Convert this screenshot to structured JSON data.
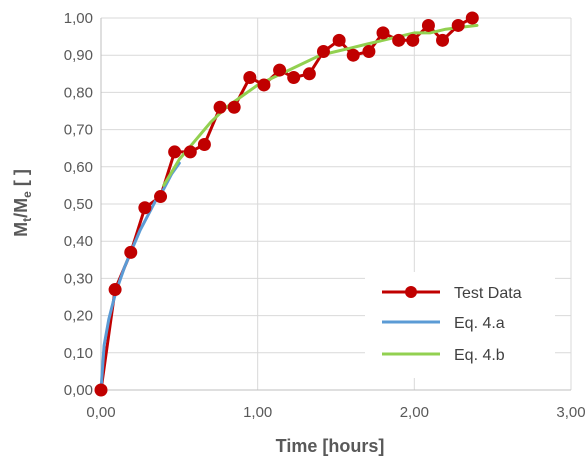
{
  "chart_data": {
    "type": "line",
    "xlabel": "Time [hours]",
    "ylabel_main": "M",
    "ylabel_sub1": "t",
    "ylabel_mid": "/M",
    "ylabel_sub2": "e",
    "ylabel_tail": " [ ]",
    "xlim": [
      0,
      3
    ],
    "ylim": [
      0,
      1
    ],
    "x_ticks": [
      "0,00",
      "1,00",
      "2,00",
      "3,00"
    ],
    "y_ticks": [
      "0,00",
      "0,10",
      "0,20",
      "0,30",
      "0,40",
      "0,50",
      "0,60",
      "0,70",
      "0,80",
      "0,90",
      "1,00"
    ],
    "x_tick_values": [
      0,
      1,
      2,
      3
    ],
    "y_tick_values": [
      0,
      0.1,
      0.2,
      0.3,
      0.4,
      0.5,
      0.6,
      0.7,
      0.8,
      0.9,
      1.0
    ],
    "grid": true,
    "legend_position": "bottom-right",
    "series": [
      {
        "name": "Test Data",
        "color": "#c00000",
        "marker": "circle",
        "x": [
          0,
          0.09,
          0.19,
          0.28,
          0.38,
          0.47,
          0.57,
          0.66,
          0.76,
          0.85,
          0.95,
          1.04,
          1.14,
          1.23,
          1.33,
          1.42,
          1.52,
          1.61,
          1.71,
          1.8,
          1.9,
          1.99,
          2.09,
          2.18,
          2.28,
          2.37
        ],
        "y": [
          0.0,
          0.27,
          0.37,
          0.49,
          0.52,
          0.64,
          0.64,
          0.66,
          0.76,
          0.76,
          0.84,
          0.82,
          0.86,
          0.84,
          0.85,
          0.91,
          0.94,
          0.9,
          0.91,
          0.96,
          0.94,
          0.94,
          0.98,
          0.94,
          0.98,
          1.0
        ]
      },
      {
        "name": "Eq. 4.a",
        "color": "#5b9bd5",
        "marker": "none",
        "x": [
          0,
          0.02,
          0.05,
          0.08,
          0.1,
          0.15,
          0.2,
          0.25,
          0.3,
          0.35,
          0.4,
          0.45,
          0.5
        ],
        "y": [
          0,
          0.12,
          0.19,
          0.24,
          0.27,
          0.33,
          0.38,
          0.43,
          0.47,
          0.51,
          0.54,
          0.58,
          0.61
        ]
      },
      {
        "name": "Eq. 4.b",
        "color": "#92d050",
        "marker": "none",
        "x": [
          0.4,
          0.5,
          0.6,
          0.7,
          0.8,
          0.9,
          1.0,
          1.1,
          1.2,
          1.3,
          1.4,
          1.5,
          1.6,
          1.7,
          1.8,
          1.9,
          2.0,
          2.1,
          2.2,
          2.3,
          2.4
        ],
        "y": [
          0.55,
          0.62,
          0.67,
          0.72,
          0.76,
          0.79,
          0.82,
          0.84,
          0.86,
          0.88,
          0.9,
          0.91,
          0.92,
          0.93,
          0.94,
          0.95,
          0.96,
          0.96,
          0.97,
          0.975,
          0.98
        ]
      }
    ]
  }
}
